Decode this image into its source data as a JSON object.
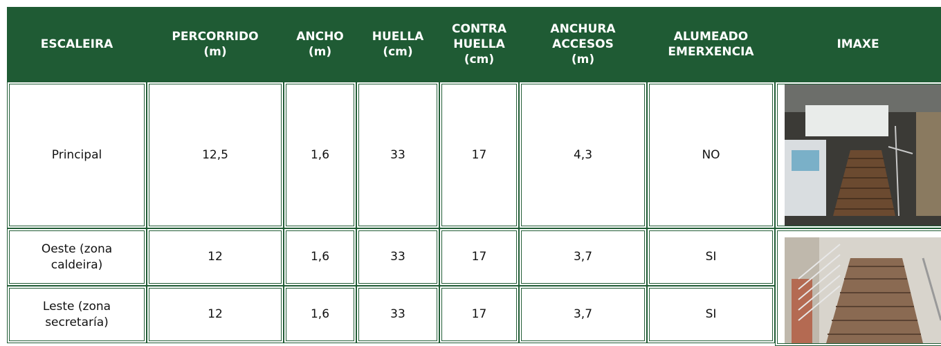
{
  "table": {
    "header": [
      "ESCALEIRA",
      "PERCORRIDO\n(m)",
      "ANCHO\n(m)",
      "HUELLA\n(cm)",
      "CONTRA\nHUELLA\n(cm)",
      "ANCHURA\nACCESOS\n(m)",
      "ALUMEADO\nEMERXENCIA",
      "IMAXE"
    ],
    "rows": [
      [
        "Principal",
        "12,5",
        "1,6",
        "33",
        "17",
        "4,3",
        "NO"
      ],
      [
        "Oeste (zona\ncaldeira)",
        "12",
        "1,6",
        "33",
        "17",
        "3,7",
        "SI"
      ],
      [
        "Leste (zona\nsecretaría)",
        "12",
        "1,6",
        "33",
        "17",
        "3,7",
        "SI"
      ]
    ]
  }
}
